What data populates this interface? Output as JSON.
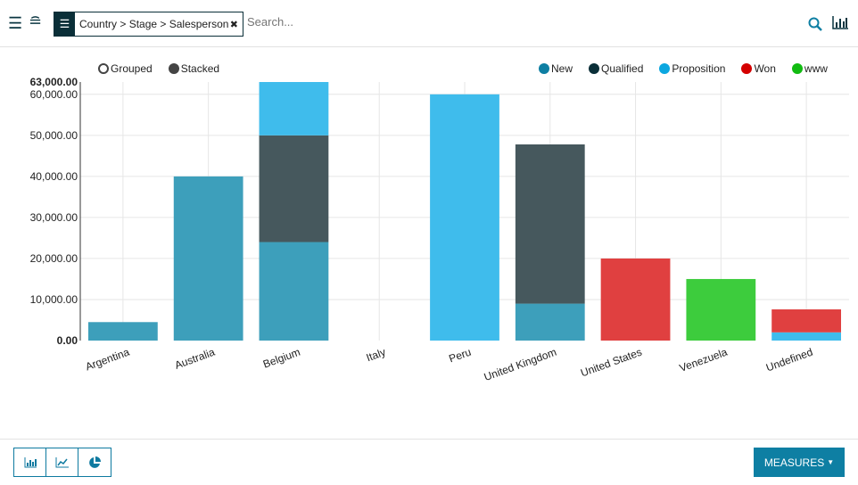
{
  "toolbar": {
    "facet_label": "Country > Stage > Salesperson",
    "search_placeholder": "Search..."
  },
  "modes": {
    "grouped": "Grouped",
    "stacked": "Stacked",
    "selected": "stacked"
  },
  "footer": {
    "measures_label": "MEASURES"
  },
  "colors": {
    "New": "#0e7fa3",
    "Qualified": "#0a2f38",
    "Proposition": "#0ca7e0",
    "Won": "#d40000",
    "www": "#11bb11"
  },
  "chart_data": {
    "type": "bar",
    "stacked": true,
    "grid": true,
    "legend_position": "top-right",
    "categories": [
      "Argentina",
      "Australia",
      "Belgium",
      "Italy",
      "Peru",
      "United Kingdom",
      "United States",
      "Venezuela",
      "Undefined"
    ],
    "ylim": [
      0,
      63000
    ],
    "yticks": [
      "0.00",
      "10,000.00",
      "20,000.00",
      "30,000.00",
      "40,000.00",
      "50,000.00",
      "60,000.00",
      "63,000.00"
    ],
    "series": [
      {
        "name": "New",
        "values": [
          4500,
          40000,
          24000,
          0,
          0,
          9000,
          0,
          0,
          0
        ]
      },
      {
        "name": "Qualified",
        "values": [
          0,
          0,
          26000,
          0,
          0,
          38800,
          0,
          0,
          0
        ]
      },
      {
        "name": "Proposition",
        "values": [
          0,
          0,
          13000,
          0,
          60000,
          0,
          0,
          0,
          2000
        ]
      },
      {
        "name": "Won",
        "values": [
          0,
          0,
          0,
          0,
          0,
          0,
          20000,
          0,
          5600
        ]
      },
      {
        "name": "www",
        "values": [
          0,
          0,
          0,
          0,
          0,
          0,
          0,
          15000,
          0
        ]
      }
    ]
  }
}
